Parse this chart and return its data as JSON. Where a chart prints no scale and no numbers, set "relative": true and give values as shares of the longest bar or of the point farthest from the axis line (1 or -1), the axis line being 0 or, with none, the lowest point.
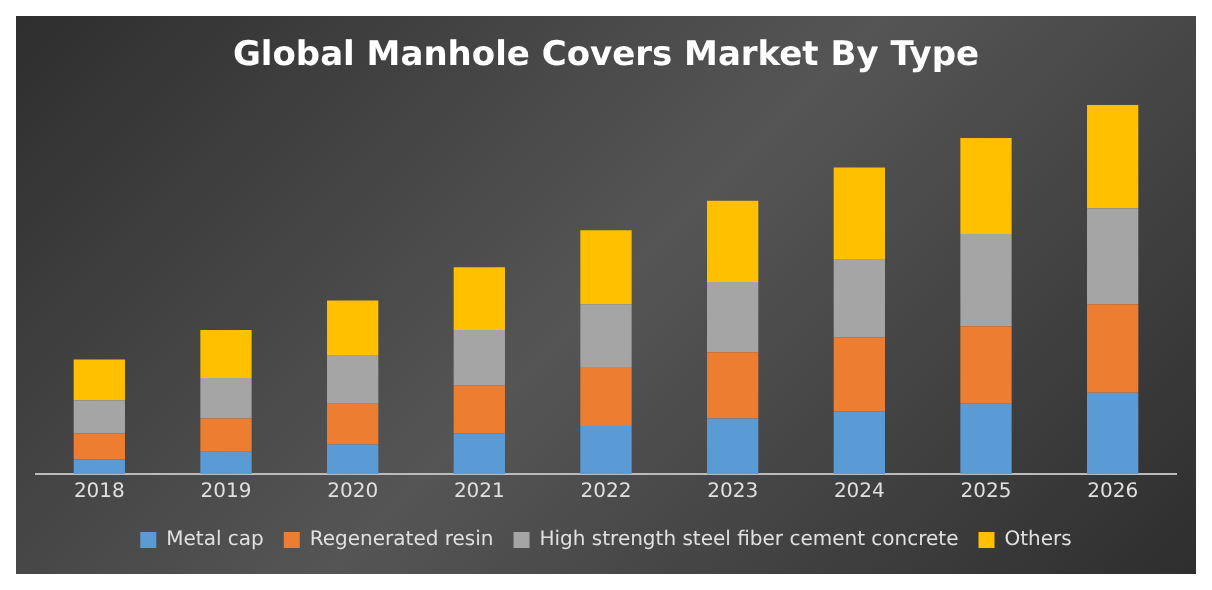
{
  "chart_data": {
    "type": "bar",
    "title": "Global Manhole Covers Market By Type",
    "categories": [
      "2018",
      "2019",
      "2020",
      "2021",
      "2022",
      "2023",
      "2024",
      "2025",
      "2026"
    ],
    "stacked": true,
    "relative": true,
    "legend": "bottom",
    "series": [
      {
        "name": "Metal cap",
        "color": "#5b9bd5",
        "values": [
          0.04,
          0.06,
          0.08,
          0.11,
          0.13,
          0.15,
          0.17,
          0.19,
          0.22
        ]
      },
      {
        "name": "Regenerated resin",
        "color": "#ed7d31",
        "values": [
          0.07,
          0.09,
          0.11,
          0.13,
          0.16,
          0.18,
          0.2,
          0.21,
          0.24
        ]
      },
      {
        "name": "High strength steel fiber cement concrete",
        "color": "#a5a5a5",
        "values": [
          0.09,
          0.11,
          0.13,
          0.15,
          0.17,
          0.19,
          0.21,
          0.25,
          0.26
        ]
      },
      {
        "name": "Others",
        "color": "#ffc000",
        "values": [
          0.11,
          0.13,
          0.15,
          0.17,
          0.2,
          0.22,
          0.25,
          0.26,
          0.28
        ]
      }
    ]
  }
}
